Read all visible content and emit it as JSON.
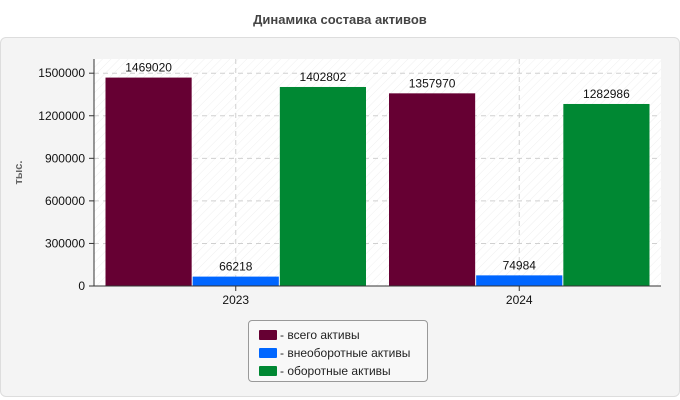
{
  "chart_data": {
    "type": "bar",
    "title": "Динамика состава активов",
    "xlabel": "",
    "ylabel": "тыс.",
    "categories": [
      "2023",
      "2024"
    ],
    "ylim": [
      0,
      1600000
    ],
    "yticks": [
      0,
      300000,
      600000,
      900000,
      1200000,
      1500000
    ],
    "grid": true,
    "legend_position": "bottom",
    "series": [
      {
        "name": "- всего активы",
        "color": "#660033",
        "values": [
          1469020,
          1357970
        ]
      },
      {
        "name": "- внеоборотные активы",
        "color": "#0066ff",
        "values": [
          66218,
          74984
        ]
      },
      {
        "name": "- оборотные активы",
        "color": "#008833",
        "values": [
          1402802,
          1282986
        ]
      }
    ]
  }
}
